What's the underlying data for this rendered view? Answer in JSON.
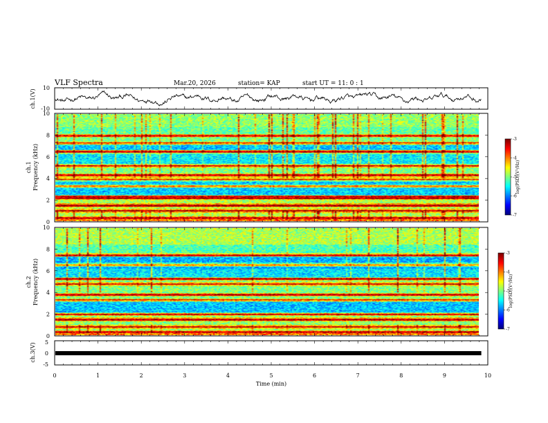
{
  "header": {
    "title": "VLF Spectra",
    "date": "Mar.20, 2026",
    "station": "station= KAP",
    "start": "start  UT =   11: 0  : 1"
  },
  "colors": {
    "trace": "#000000",
    "line": "#000000"
  },
  "chart_data": [
    {
      "type": "line",
      "panel": "waveform-ch1",
      "ylabel": "ch.1(V)",
      "ylim": [
        -10,
        10
      ],
      "yticks": [
        "10",
        "-10"
      ],
      "xlim": [
        0,
        10
      ],
      "data_end_min": 9.85,
      "series": [
        {
          "description_values": "noisy oscillation approx between -8 and 8 V"
        }
      ]
    },
    {
      "type": "heatmap",
      "panel": "spectrogram-ch1",
      "ylabel_line1": "ch.1",
      "ylabel_line2": "Frequency (kHz)",
      "ylim": [
        0,
        10
      ],
      "yticks": [
        "0",
        "2",
        "4",
        "6",
        "8",
        "10"
      ],
      "xlim": [
        0,
        10
      ],
      "data_end_min": 9.85,
      "colorbar": {
        "label": "log(PSD)(V²/Hz)",
        "ticks": [
          "-3",
          "-4",
          "-5",
          "-6",
          "-7"
        ],
        "range": [
          -7,
          -3
        ]
      },
      "bands_khz": [
        0.3,
        1.0,
        1.5,
        2.2,
        2.3,
        3.3,
        3.9,
        4.3,
        5.2,
        6.5,
        7.3,
        8.0
      ]
    },
    {
      "type": "heatmap",
      "panel": "spectrogram-ch2",
      "ylabel_line1": "ch.2",
      "ylabel_line2": "Frequency (kHz)",
      "ylim": [
        0,
        10
      ],
      "yticks": [
        "0",
        "2",
        "4",
        "6",
        "8",
        "10"
      ],
      "xlim": [
        0,
        10
      ],
      "data_end_min": 9.85,
      "colorbar": {
        "label": "log(PSD)(V²/Hz)",
        "ticks": [
          "-3",
          "-4",
          "-5",
          "-6",
          "-7"
        ],
        "range": [
          -7,
          -3
        ]
      },
      "bands_khz": [
        0.3,
        0.8,
        1.5,
        2.0,
        3.3,
        3.8,
        4.8,
        5.3,
        6.6,
        7.5
      ]
    },
    {
      "type": "line",
      "panel": "waveform-ch3",
      "ylabel": "ch.3(V)",
      "ylim": [
        -5,
        5
      ],
      "yticks": [
        "5",
        "0",
        "-5"
      ],
      "xlim": [
        0,
        10
      ],
      "xlabel": "Time (min)",
      "xticks": [
        "0",
        "1",
        "2",
        "3",
        "4",
        "5",
        "6",
        "7",
        "8",
        "9",
        "10"
      ],
      "data_end_min": 9.85,
      "series": [
        {
          "values": [
            0
          ],
          "note_style": "thick flat band at 0 V"
        }
      ]
    }
  ]
}
